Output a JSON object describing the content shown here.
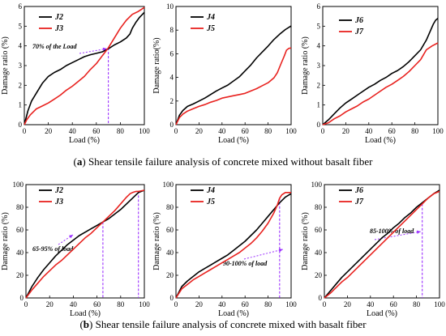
{
  "captions": {
    "top": {
      "letter": "a",
      "text": "Shear tensile failure analysis of concrete mixed without basalt fiber"
    },
    "bottom": {
      "letter": "b",
      "text": "Shear tensile failure analysis of concrete mixed with basalt fiber"
    }
  },
  "colors": {
    "series_black": "#000000",
    "series_red": "#e8221f",
    "annotation": "#9b30ff"
  },
  "chart_data": [
    {
      "type": "line",
      "id": "a1",
      "xlabel": "Load (%)",
      "ylabel": "Damage ratio (%)",
      "xlim": [
        0,
        100
      ],
      "ylim": [
        0,
        6
      ],
      "xticks": [
        0,
        20,
        40,
        60,
        80,
        100
      ],
      "yticks": [
        0,
        1,
        2,
        3,
        4,
        5,
        6
      ],
      "legend_position": "top-left",
      "series": [
        {
          "name": "J2",
          "color": "#000000",
          "x": [
            0,
            3,
            6,
            10,
            15,
            20,
            25,
            30,
            35,
            40,
            45,
            50,
            55,
            60,
            65,
            70,
            75,
            80,
            85,
            88,
            90,
            93,
            96,
            100
          ],
          "y": [
            0,
            0.7,
            1.2,
            1.6,
            2.1,
            2.45,
            2.65,
            2.8,
            3.0,
            3.15,
            3.3,
            3.45,
            3.55,
            3.62,
            3.7,
            3.85,
            4.05,
            4.2,
            4.4,
            4.6,
            4.9,
            5.2,
            5.45,
            5.7
          ]
        },
        {
          "name": "J3",
          "color": "#e8221f",
          "x": [
            0,
            2,
            5,
            10,
            15,
            20,
            25,
            30,
            35,
            40,
            45,
            50,
            55,
            60,
            65,
            70,
            75,
            80,
            85,
            90,
            95,
            100
          ],
          "y": [
            0,
            0.25,
            0.5,
            0.8,
            0.95,
            1.1,
            1.3,
            1.5,
            1.75,
            1.95,
            2.2,
            2.45,
            2.8,
            3.1,
            3.5,
            3.9,
            4.4,
            4.9,
            5.3,
            5.6,
            5.75,
            5.95
          ]
        }
      ],
      "annotations": [
        {
          "text": "70% of the Load",
          "x_mark": 70,
          "y_mark": 3.9
        }
      ]
    },
    {
      "type": "line",
      "id": "a2",
      "xlabel": "Load (%)",
      "ylabel": "Damage ratio(%)",
      "xlim": [
        0,
        100
      ],
      "ylim": [
        0,
        10
      ],
      "xticks": [
        0,
        20,
        40,
        60,
        80,
        100
      ],
      "yticks": [
        0,
        2,
        4,
        6,
        8,
        10
      ],
      "legend_position": "top-left",
      "series": [
        {
          "name": "J4",
          "color": "#000000",
          "x": [
            0,
            3,
            6,
            10,
            15,
            20,
            25,
            30,
            35,
            40,
            45,
            50,
            55,
            60,
            65,
            70,
            75,
            80,
            85,
            90,
            95,
            100
          ],
          "y": [
            0,
            0.8,
            1.2,
            1.55,
            1.75,
            2.0,
            2.25,
            2.55,
            2.85,
            3.1,
            3.35,
            3.7,
            4.05,
            4.55,
            5.05,
            5.65,
            6.15,
            6.65,
            7.2,
            7.65,
            8.05,
            8.35
          ]
        },
        {
          "name": "J5",
          "color": "#e8221f",
          "x": [
            0,
            3,
            6,
            10,
            15,
            20,
            25,
            30,
            35,
            40,
            45,
            50,
            55,
            60,
            65,
            70,
            75,
            80,
            85,
            88,
            91,
            94,
            96,
            98,
            100
          ],
          "y": [
            0,
            0.6,
            0.9,
            1.15,
            1.35,
            1.55,
            1.7,
            1.9,
            2.05,
            2.25,
            2.35,
            2.45,
            2.55,
            2.65,
            2.85,
            3.05,
            3.3,
            3.55,
            3.95,
            4.4,
            5.1,
            5.8,
            6.3,
            6.45,
            6.5
          ]
        }
      ],
      "annotations": []
    },
    {
      "type": "line",
      "id": "a3",
      "xlabel": "Load (%)",
      "ylabel": "Damage ratio (%)",
      "xlim": [
        0,
        100
      ],
      "ylim": [
        0,
        6
      ],
      "xticks": [
        0,
        20,
        40,
        60,
        80,
        100
      ],
      "yticks": [
        0,
        1,
        2,
        3,
        4,
        5,
        6
      ],
      "legend_position": "top-left",
      "series": [
        {
          "name": "J6",
          "color": "#000000",
          "x": [
            0,
            5,
            10,
            15,
            20,
            25,
            30,
            35,
            40,
            45,
            50,
            55,
            60,
            65,
            70,
            75,
            80,
            85,
            90,
            93,
            96,
            98,
            100
          ],
          "y": [
            0,
            0.25,
            0.55,
            0.85,
            1.1,
            1.3,
            1.5,
            1.7,
            1.9,
            2.05,
            2.25,
            2.4,
            2.6,
            2.75,
            2.95,
            3.2,
            3.5,
            3.8,
            4.3,
            4.7,
            5.1,
            5.3,
            5.4
          ]
        },
        {
          "name": "J7",
          "color": "#e8221f",
          "x": [
            0,
            5,
            10,
            15,
            20,
            25,
            30,
            35,
            40,
            45,
            50,
            55,
            60,
            65,
            70,
            75,
            80,
            85,
            90,
            95,
            100
          ],
          "y": [
            0,
            0.1,
            0.3,
            0.45,
            0.65,
            0.8,
            0.95,
            1.15,
            1.3,
            1.5,
            1.7,
            1.9,
            2.05,
            2.25,
            2.45,
            2.7,
            3.0,
            3.3,
            3.8,
            4.0,
            4.15
          ]
        }
      ],
      "annotations": []
    },
    {
      "type": "line",
      "id": "b1",
      "xlabel": "Load (%)",
      "ylabel": "Damage ratio (%)",
      "xlim": [
        0,
        100
      ],
      "ylim": [
        0,
        100
      ],
      "xticks": [
        0,
        20,
        40,
        60,
        80,
        100
      ],
      "yticks": [
        0,
        20,
        40,
        60,
        80,
        100
      ],
      "legend_position": "top-left",
      "series": [
        {
          "name": "J2",
          "color": "#000000",
          "x": [
            0,
            5,
            10,
            15,
            20,
            25,
            30,
            35,
            40,
            45,
            50,
            55,
            60,
            65,
            70,
            75,
            80,
            85,
            90,
            95,
            100
          ],
          "y": [
            0,
            10,
            18,
            25,
            31,
            37,
            42,
            47,
            51,
            55,
            58,
            61,
            64,
            67,
            70,
            74,
            78,
            83,
            88,
            93,
            95
          ]
        },
        {
          "name": "J3",
          "color": "#e8221f",
          "x": [
            0,
            5,
            10,
            15,
            20,
            25,
            30,
            35,
            40,
            45,
            50,
            55,
            60,
            65,
            70,
            75,
            80,
            85,
            88,
            90,
            93,
            95,
            100
          ],
          "y": [
            0,
            7,
            13,
            19,
            24,
            29,
            33,
            38,
            43,
            48,
            53,
            57,
            62,
            67,
            72,
            77,
            83,
            89,
            92,
            93,
            94,
            94,
            95
          ]
        }
      ],
      "annotations": [
        {
          "text": "65-95% of load",
          "x_mark": 65,
          "x_mark2": 95
        }
      ]
    },
    {
      "type": "line",
      "id": "b2",
      "xlabel": "Load (%)",
      "ylabel": "Damage ratio (%)",
      "xlim": [
        0,
        100
      ],
      "ylim": [
        0,
        100
      ],
      "xticks": [
        0,
        20,
        40,
        60,
        80,
        100
      ],
      "yticks": [
        0,
        20,
        40,
        60,
        80,
        100
      ],
      "legend_position": "top-left",
      "series": [
        {
          "name": "J4",
          "color": "#000000",
          "x": [
            0,
            5,
            10,
            15,
            20,
            25,
            30,
            35,
            40,
            45,
            50,
            55,
            60,
            65,
            70,
            75,
            80,
            85,
            90,
            95,
            100
          ],
          "y": [
            0,
            10,
            15,
            19,
            23,
            26,
            29,
            32,
            35,
            38,
            42,
            46,
            50,
            55,
            60,
            66,
            72,
            78,
            84,
            89,
            92
          ]
        },
        {
          "name": "J5",
          "color": "#e8221f",
          "x": [
            0,
            5,
            10,
            15,
            20,
            25,
            30,
            35,
            40,
            45,
            50,
            55,
            60,
            65,
            70,
            75,
            80,
            85,
            88,
            90,
            92,
            95,
            100
          ],
          "y": [
            0,
            8,
            12,
            16,
            19,
            22,
            25,
            28,
            31,
            34,
            37,
            40,
            44,
            48,
            53,
            59,
            66,
            75,
            82,
            88,
            91,
            93,
            93
          ]
        }
      ],
      "annotations": [
        {
          "text": "90-100% of load",
          "x_mark": 90
        }
      ]
    },
    {
      "type": "line",
      "id": "b3",
      "xlabel": "Load (%)",
      "ylabel": "Damage ratio (%)",
      "xlim": [
        0,
        100
      ],
      "ylim": [
        0,
        100
      ],
      "xticks": [
        0,
        20,
        40,
        60,
        80,
        100
      ],
      "yticks": [
        0,
        20,
        40,
        60,
        80,
        100
      ],
      "legend_position": "top-left",
      "series": [
        {
          "name": "J6",
          "color": "#000000",
          "x": [
            0,
            5,
            10,
            15,
            20,
            25,
            30,
            35,
            40,
            45,
            50,
            55,
            60,
            65,
            70,
            75,
            80,
            85,
            90,
            95,
            100
          ],
          "y": [
            0,
            6,
            12,
            18,
            23,
            28,
            33,
            38,
            43,
            48,
            53,
            57,
            62,
            66,
            71,
            75,
            80,
            84,
            88,
            92,
            95
          ]
        },
        {
          "name": "J7",
          "color": "#e8221f",
          "x": [
            0,
            5,
            10,
            15,
            20,
            25,
            30,
            35,
            40,
            45,
            50,
            55,
            60,
            65,
            70,
            75,
            80,
            85,
            90,
            95,
            100
          ],
          "y": [
            0,
            4,
            9,
            14,
            18,
            23,
            28,
            33,
            38,
            43,
            48,
            53,
            58,
            63,
            68,
            73,
            78,
            83,
            88,
            92,
            94
          ]
        }
      ],
      "annotations": [
        {
          "text": "85-100% of load",
          "x_mark": 85
        }
      ]
    }
  ]
}
